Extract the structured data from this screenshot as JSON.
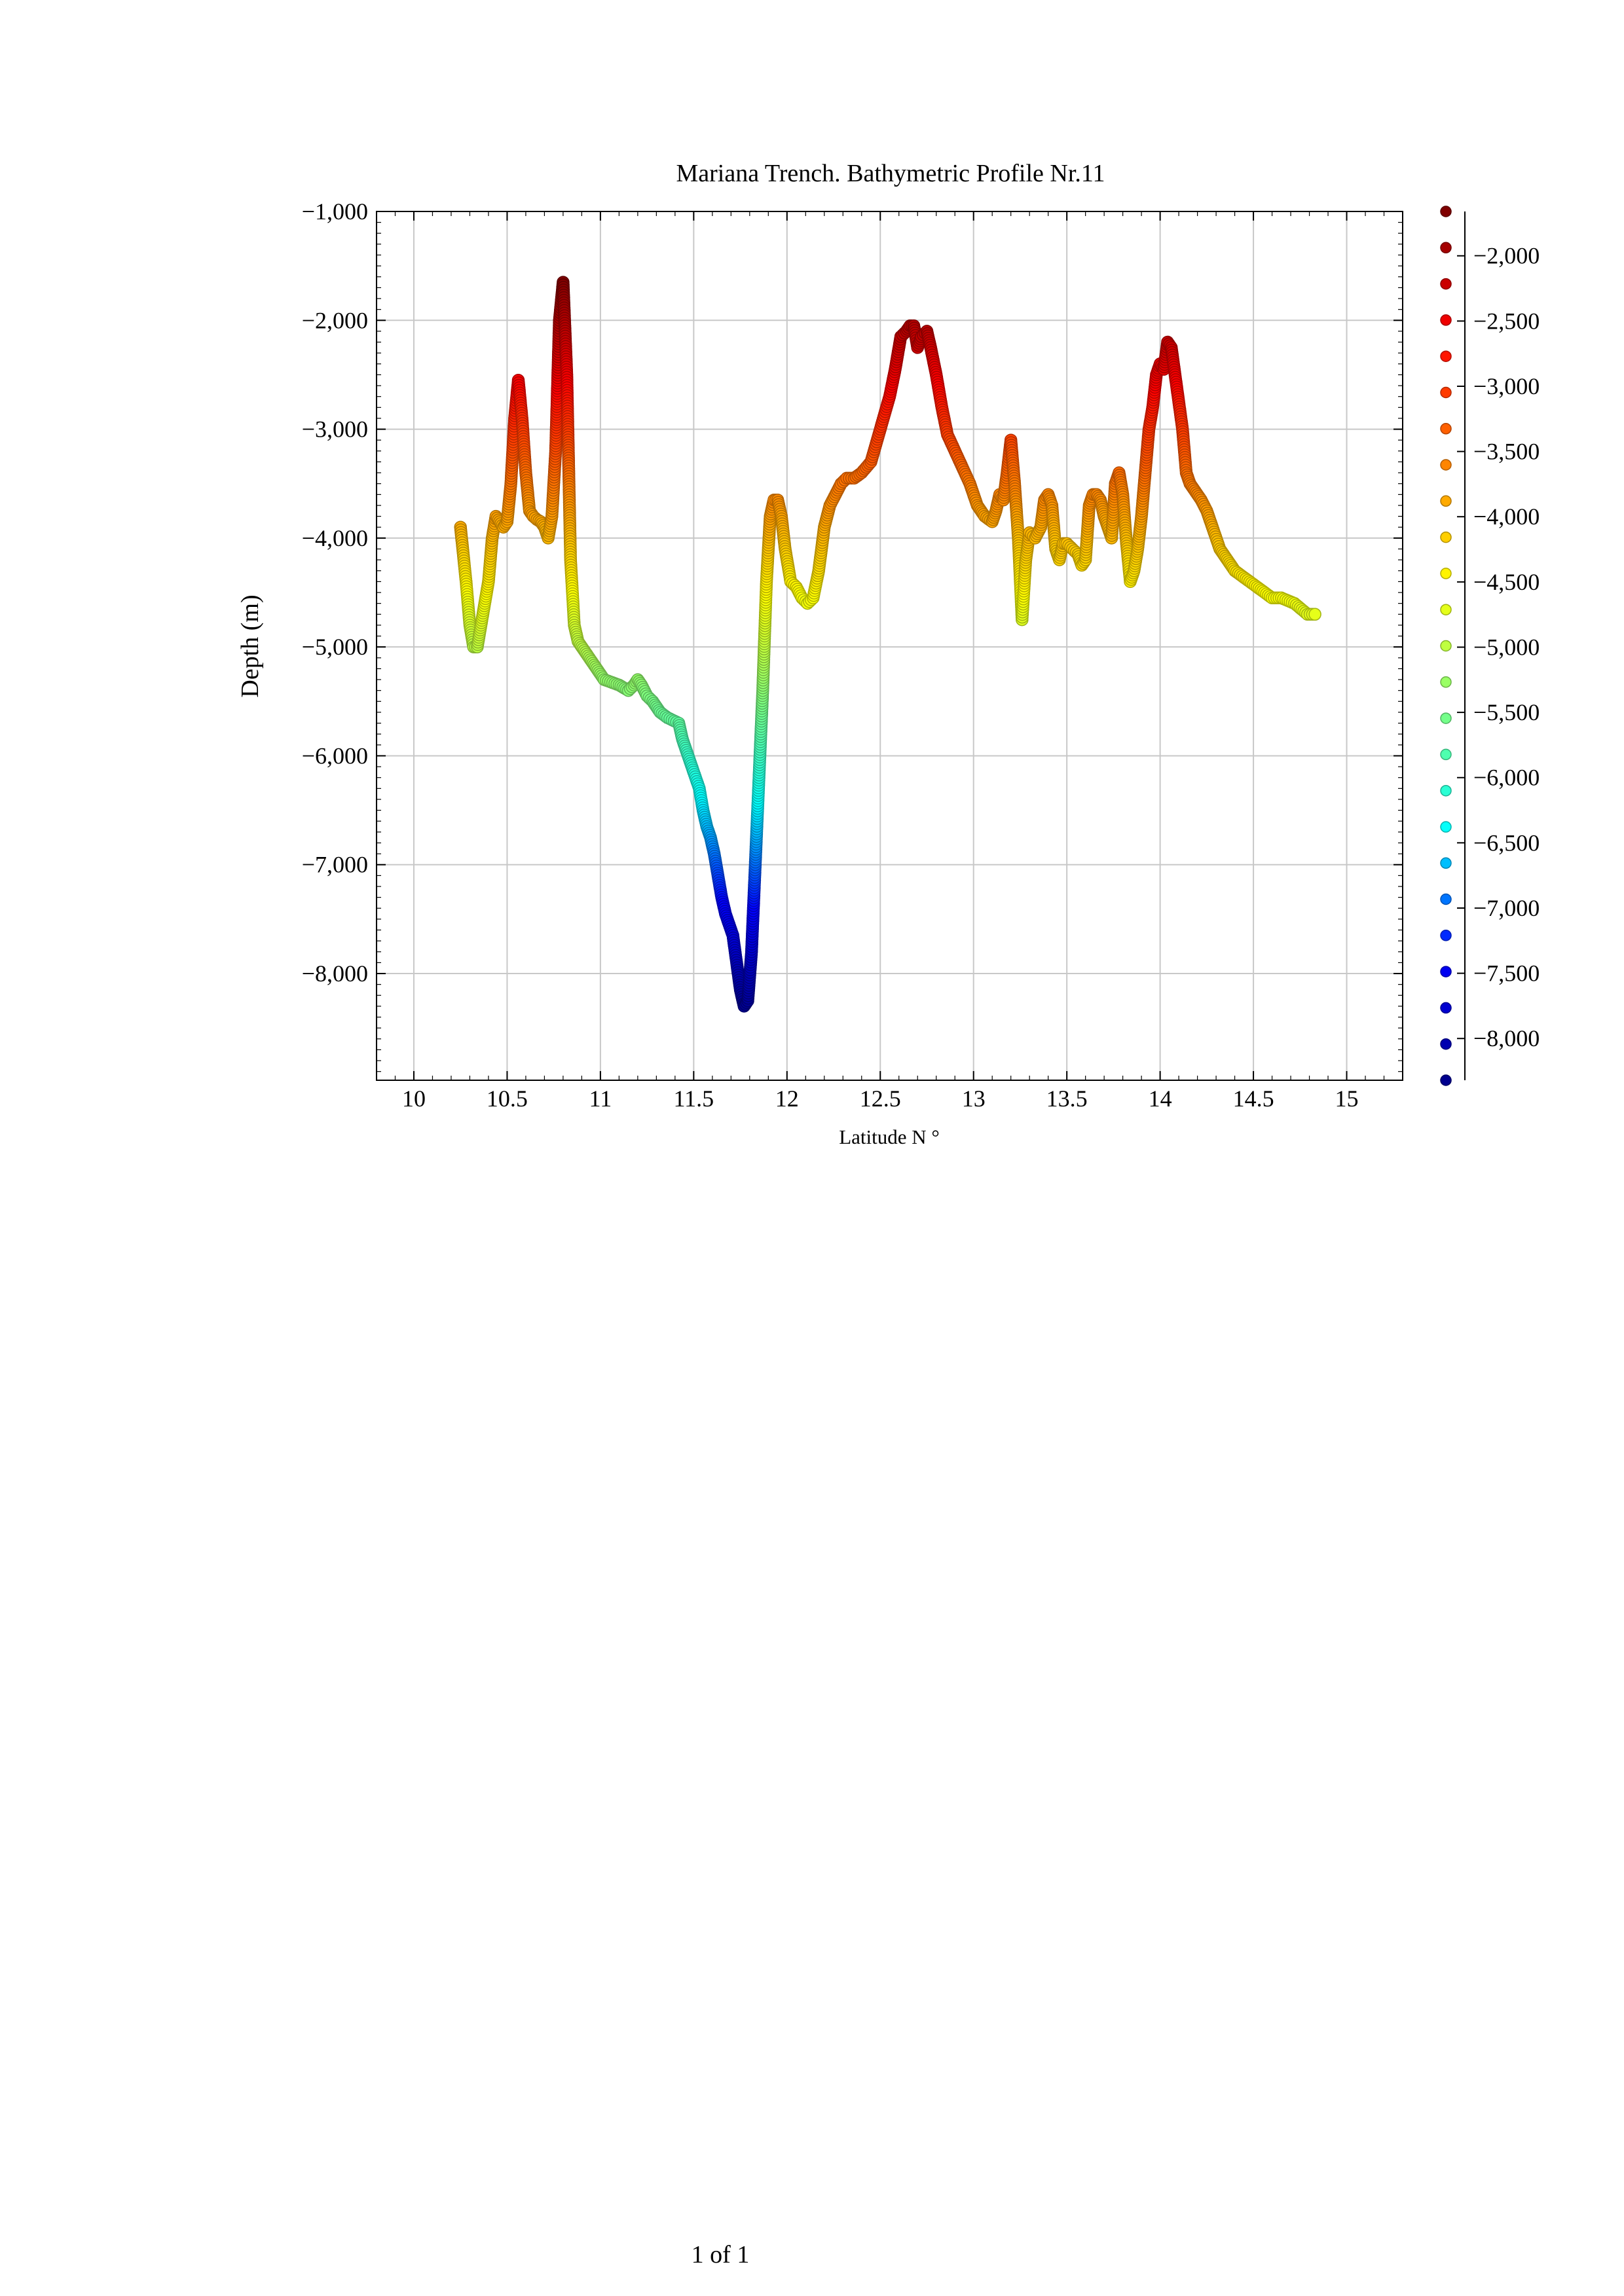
{
  "page": {
    "footer": "1 of 1"
  },
  "chart_data": {
    "type": "scatter",
    "title": "Mariana Trench. Bathymetric Profile Nr.11",
    "xlabel": "Latitude N °",
    "ylabel": "Depth (m)",
    "xlim": [
      9.8,
      15.3
    ],
    "ylim": [
      -8980,
      -1000
    ],
    "x_ticks": [
      10,
      10.5,
      11,
      11.5,
      12,
      12.5,
      13,
      13.5,
      14,
      14.5,
      15
    ],
    "x_tick_labels": [
      "10",
      "10.5",
      "11",
      "11.5",
      "12",
      "12.5",
      "13",
      "13.5",
      "14",
      "14.5",
      "15"
    ],
    "y_ticks": [
      -1000,
      -2000,
      -3000,
      -4000,
      -5000,
      -6000,
      -7000,
      -8000
    ],
    "y_tick_labels": [
      "−1,000",
      "−2,000",
      "−3,000",
      "−4,000",
      "−5,000",
      "−6,000",
      "−7,000",
      "−8,000"
    ],
    "grid": true,
    "colorbar": {
      "range": [
        -8320,
        -1660
      ],
      "ticks": [
        -2000,
        -2500,
        -3000,
        -3500,
        -4000,
        -4500,
        -5000,
        -5500,
        -6000,
        -6500,
        -7000,
        -7500,
        -8000
      ],
      "tick_labels": [
        "−2,000",
        "−2,500",
        "−3,000",
        "−3,500",
        "−4,000",
        "−4,500",
        "−5,000",
        "−5,500",
        "−6,000",
        "−6,500",
        "−7,000",
        "−7,500",
        "−8,000"
      ],
      "colormap": [
        "#00008f",
        "#0000ff",
        "#00ffff",
        "#7fff7f",
        "#ffff00",
        "#ff8000",
        "#ff0000",
        "#800000"
      ]
    },
    "series": [
      {
        "x": [
          10.25,
          10.28,
          10.3,
          10.32,
          10.34,
          10.36,
          10.38,
          10.4,
          10.42,
          10.44,
          10.46,
          10.48,
          10.5,
          10.52,
          10.54,
          10.56,
          10.58,
          10.6,
          10.62,
          10.64,
          10.66,
          10.68,
          10.7,
          10.72,
          10.74,
          10.76,
          10.78,
          10.8,
          10.82,
          10.84,
          10.86,
          10.88,
          10.92,
          10.96,
          11.0,
          11.02,
          11.1,
          11.15,
          11.18,
          11.2,
          11.22,
          11.25,
          11.28,
          11.32,
          11.36,
          11.42,
          11.44,
          11.46,
          11.48,
          11.5,
          11.53,
          11.55,
          11.57,
          11.59,
          11.61,
          11.63,
          11.65,
          11.67,
          11.69,
          11.71,
          11.73,
          11.75,
          11.77,
          11.79,
          11.81,
          11.83,
          11.85,
          11.87,
          11.89,
          11.91,
          11.93,
          11.95,
          11.97,
          11.99,
          12.02,
          12.05,
          12.08,
          12.11,
          12.14,
          12.17,
          12.2,
          12.23,
          12.26,
          12.29,
          12.32,
          12.36,
          12.4,
          12.45,
          12.5,
          12.55,
          12.58,
          12.61,
          12.64,
          12.66,
          12.68,
          12.7,
          12.72,
          12.75,
          12.77,
          12.8,
          12.83,
          12.86,
          12.9,
          12.94,
          12.98,
          13.02,
          13.06,
          13.1,
          13.12,
          13.14,
          13.16,
          13.18,
          13.2,
          13.22,
          13.24,
          13.26,
          13.28,
          13.3,
          13.33,
          13.36,
          13.38,
          13.4,
          13.42,
          13.44,
          13.46,
          13.48,
          13.5,
          13.53,
          13.56,
          13.58,
          13.6,
          13.62,
          13.64,
          13.66,
          13.68,
          13.7,
          13.72,
          13.74,
          13.76,
          13.78,
          13.8,
          13.82,
          13.84,
          13.86,
          13.88,
          13.9,
          13.92,
          13.94,
          13.96,
          13.98,
          14.0,
          14.02,
          14.04,
          14.06,
          14.08,
          14.1,
          14.12,
          14.14,
          14.16,
          14.18,
          14.2,
          14.22,
          14.25,
          14.28,
          14.32,
          14.36,
          14.4,
          14.44,
          14.48,
          14.52,
          14.56,
          14.6,
          14.65,
          14.72,
          14.79,
          14.83
        ],
        "y": [
          -3900,
          -4400,
          -4800,
          -5000,
          -5000,
          -4800,
          -4600,
          -4400,
          -4000,
          -3800,
          -3850,
          -3900,
          -3850,
          -3500,
          -2900,
          -2550,
          -2900,
          -3400,
          -3750,
          -3800,
          -3830,
          -3850,
          -3900,
          -4000,
          -3800,
          -3200,
          -2000,
          -1650,
          -2500,
          -4200,
          -4800,
          -4950,
          -5050,
          -5150,
          -5250,
          -5300,
          -5350,
          -5400,
          -5350,
          -5300,
          -5350,
          -5450,
          -5500,
          -5600,
          -5650,
          -5700,
          -5850,
          -5950,
          -6050,
          -6150,
          -6300,
          -6500,
          -6650,
          -6750,
          -6900,
          -7100,
          -7300,
          -7450,
          -7550,
          -7650,
          -7900,
          -8150,
          -8300,
          -8250,
          -7800,
          -7000,
          -6200,
          -5400,
          -4400,
          -3800,
          -3650,
          -3650,
          -3800,
          -4100,
          -4400,
          -4450,
          -4550,
          -4600,
          -4550,
          -4300,
          -3900,
          -3700,
          -3600,
          -3500,
          -3450,
          -3450,
          -3400,
          -3300,
          -3000,
          -2700,
          -2450,
          -2150,
          -2100,
          -2050,
          -2050,
          -2250,
          -2150,
          -2100,
          -2250,
          -2500,
          -2800,
          -3050,
          -3200,
          -3350,
          -3500,
          -3700,
          -3800,
          -3850,
          -3750,
          -3600,
          -3650,
          -3400,
          -3100,
          -3500,
          -4000,
          -4750,
          -4200,
          -3950,
          -4000,
          -3900,
          -3650,
          -3600,
          -3700,
          -4100,
          -4200,
          -4050,
          -4050,
          -4100,
          -4150,
          -4250,
          -4200,
          -3700,
          -3600,
          -3600,
          -3650,
          -3800,
          -3900,
          -4000,
          -3500,
          -3400,
          -3600,
          -4050,
          -4400,
          -4300,
          -4100,
          -3800,
          -3400,
          -3000,
          -2800,
          -2500,
          -2400,
          -2450,
          -2200,
          -2250,
          -2500,
          -2750,
          -3000,
          -3400,
          -3500,
          -3550,
          -3600,
          -3650,
          -3750,
          -3900,
          -4100,
          -4200,
          -4300,
          -4350,
          -4400,
          -4450,
          -4500,
          -4550,
          -4550,
          -4600,
          -4700,
          -4700
        ]
      }
    ]
  }
}
